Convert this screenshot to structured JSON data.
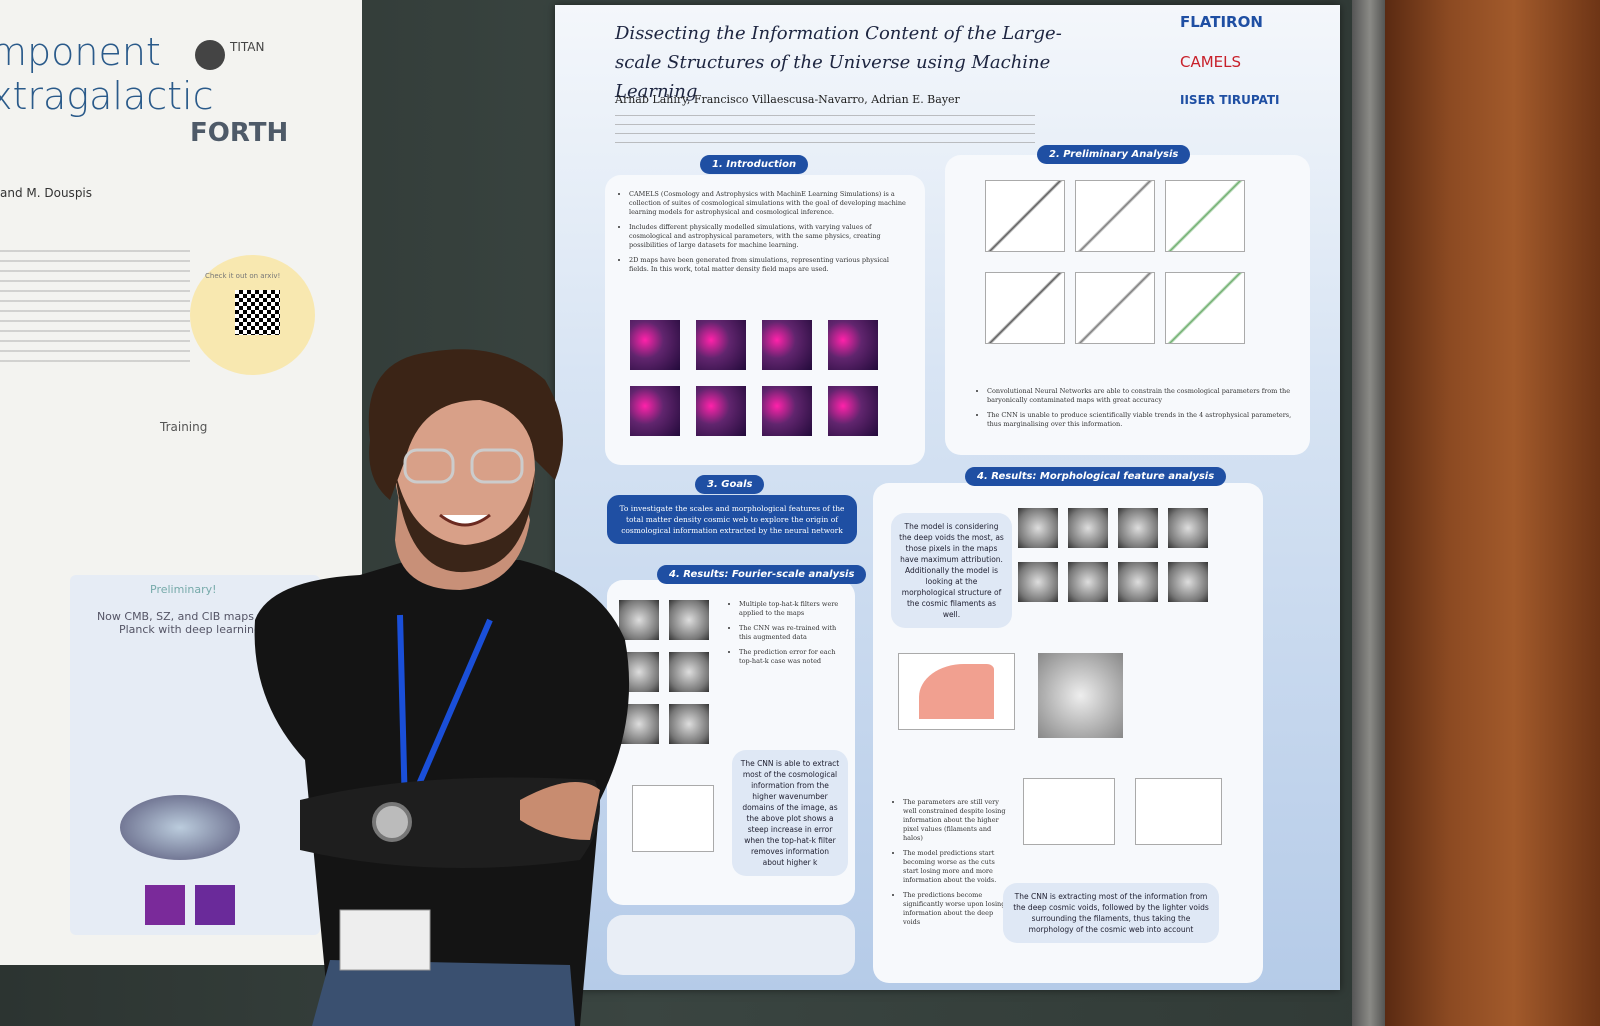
{
  "left_poster": {
    "title_lines": [
      "mponent",
      "xtragalactic"
    ],
    "logos": [
      "TITAN",
      "FORTH"
    ],
    "authors_fragment": "and M. Douspis",
    "arxiv_note": "Check it out on arxiv!",
    "training": "Training",
    "preliminary": "Preliminary!",
    "preliminary_text": "Now CMB, SZ, and CIB maps from Planck with deep learning"
  },
  "main_poster": {
    "title": "Dissecting the Information Content of the Large-scale Structures of the Universe using Machine Learning",
    "authors": "Arnab Lahiry, Francisco Villaescusa-Navarro, Adrian E. Bayer",
    "logos": [
      "FLATIRON",
      "CAMELS",
      "IISER TIRUPATI"
    ],
    "sections": [
      {
        "heading": "1. Introduction",
        "bullets": [
          "CAMELS (Cosmology and Astrophysics with MachinE Learning Simulations) is a collection of suites of cosmological simulations with the goal of developing machine learning models for astrophysical and cosmological inference.",
          "Includes different physically modelled simulations, with varying values of cosmological and astrophysical parameters, with the same physics, creating possibilities of large datasets for machine learning.",
          "2D maps have been generated from simulations, representing various physical fields. In this work, total matter density field maps are used."
        ]
      },
      {
        "heading": "2. Preliminary Analysis",
        "bullets": [
          "Convolutional Neural Networks are able to constrain the cosmological parameters from the baryonically contaminated maps with great accuracy",
          "The CNN is unable to produce scientifically viable trends in the 4 astrophysical parameters, thus marginalising over this information."
        ]
      },
      {
        "heading": "3. Goals",
        "text": "To investigate the scales and morphological features of the total matter density cosmic web to explore the origin of cosmological information extracted by the neural network"
      },
      {
        "heading": "4. Results: Fourier-scale analysis",
        "bullets": [
          "Multiple top-hat-k filters were applied to the maps",
          "The CNN was re-trained with this augmented data",
          "The prediction error for each top-hat-k case was noted"
        ],
        "note": "The CNN is able to extract most of the cosmological information from the higher wavenumber domains of the image, as the above plot shows a steep increase in error when the top-hat-k filter removes information about higher k"
      },
      {
        "heading": "4. Results: Morphological feature analysis",
        "note": "The model is considering the deep voids the most, as those pixels in the maps have maximum attribution. Additionally the model is looking at the morphological structure of the cosmic filaments as well.",
        "bullets": [
          "The parameters are still very well constrained despite losing information about the higher pixel values (filaments and halos)",
          "The model predictions start becoming worse as the cuts start losing more and more information about the voids.",
          "The predictions become significantly worse upon losing information about the deep voids"
        ],
        "conclusion": "The CNN is extracting most of the information from the deep cosmic voids, followed by the lighter voids surrounding the filaments, thus taking the morphology of the cosmic web into account"
      }
    ]
  }
}
